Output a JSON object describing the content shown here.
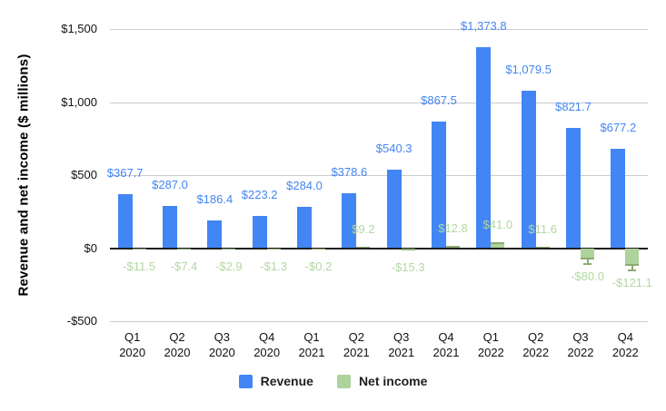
{
  "chart_data": {
    "type": "bar",
    "title": "",
    "xlabel": "",
    "ylabel": "Revenue and net income ($ millions)",
    "categories": [
      "Q1 2020",
      "Q2 2020",
      "Q3 2020",
      "Q4 2020",
      "Q1 2021",
      "Q2 2021",
      "Q3 2021",
      "Q4 2021",
      "Q1 2022",
      "Q2 2022",
      "Q3 2022",
      "Q4 2022"
    ],
    "series": [
      {
        "name": "Revenue",
        "color": "#4285f4",
        "label_color": "#4285f4",
        "values": [
          367.7,
          287.0,
          186.4,
          223.2,
          284.0,
          378.6,
          540.3,
          867.5,
          1373.8,
          1079.5,
          821.7,
          677.2
        ],
        "labels": [
          "$367.7",
          "$287.0",
          "$186.4",
          "$223.2",
          "$284.0",
          "$378.6",
          "$540.3",
          "$867.5",
          "$1,373.8",
          "$1,079.5",
          "$821.7",
          "$677.2"
        ]
      },
      {
        "name": "Net income",
        "color": "#aed29b",
        "cap_color": "#8bab74",
        "label_color": "#b2d7a2",
        "values": [
          -11.5,
          -7.4,
          -2.9,
          -1.3,
          -0.2,
          9.2,
          -15.3,
          12.8,
          41.0,
          11.6,
          -80.0,
          -121.1
        ],
        "labels": [
          "-$11.5",
          "-$7.4",
          "-$2.9",
          "-$1.3",
          "-$0.2",
          "$9.2",
          "-$15.3",
          "$12.8",
          "$41.0",
          "$11.6",
          "-$80.0",
          "-$121.1"
        ]
      }
    ],
    "y_ticks": [
      {
        "value": 1500,
        "label": "$1,500"
      },
      {
        "value": 1000,
        "label": "$1,000"
      },
      {
        "value": 500,
        "label": "$500"
      },
      {
        "value": 0,
        "label": "$0"
      },
      {
        "value": -500,
        "label": "-$500"
      }
    ],
    "ylim": [
      -500,
      1500
    ],
    "grid": true,
    "legend_position": "bottom",
    "axis_colors": {
      "gridline": "#cccccc",
      "zero_line": "#1f1f1f",
      "tick_text": "#111111"
    }
  }
}
